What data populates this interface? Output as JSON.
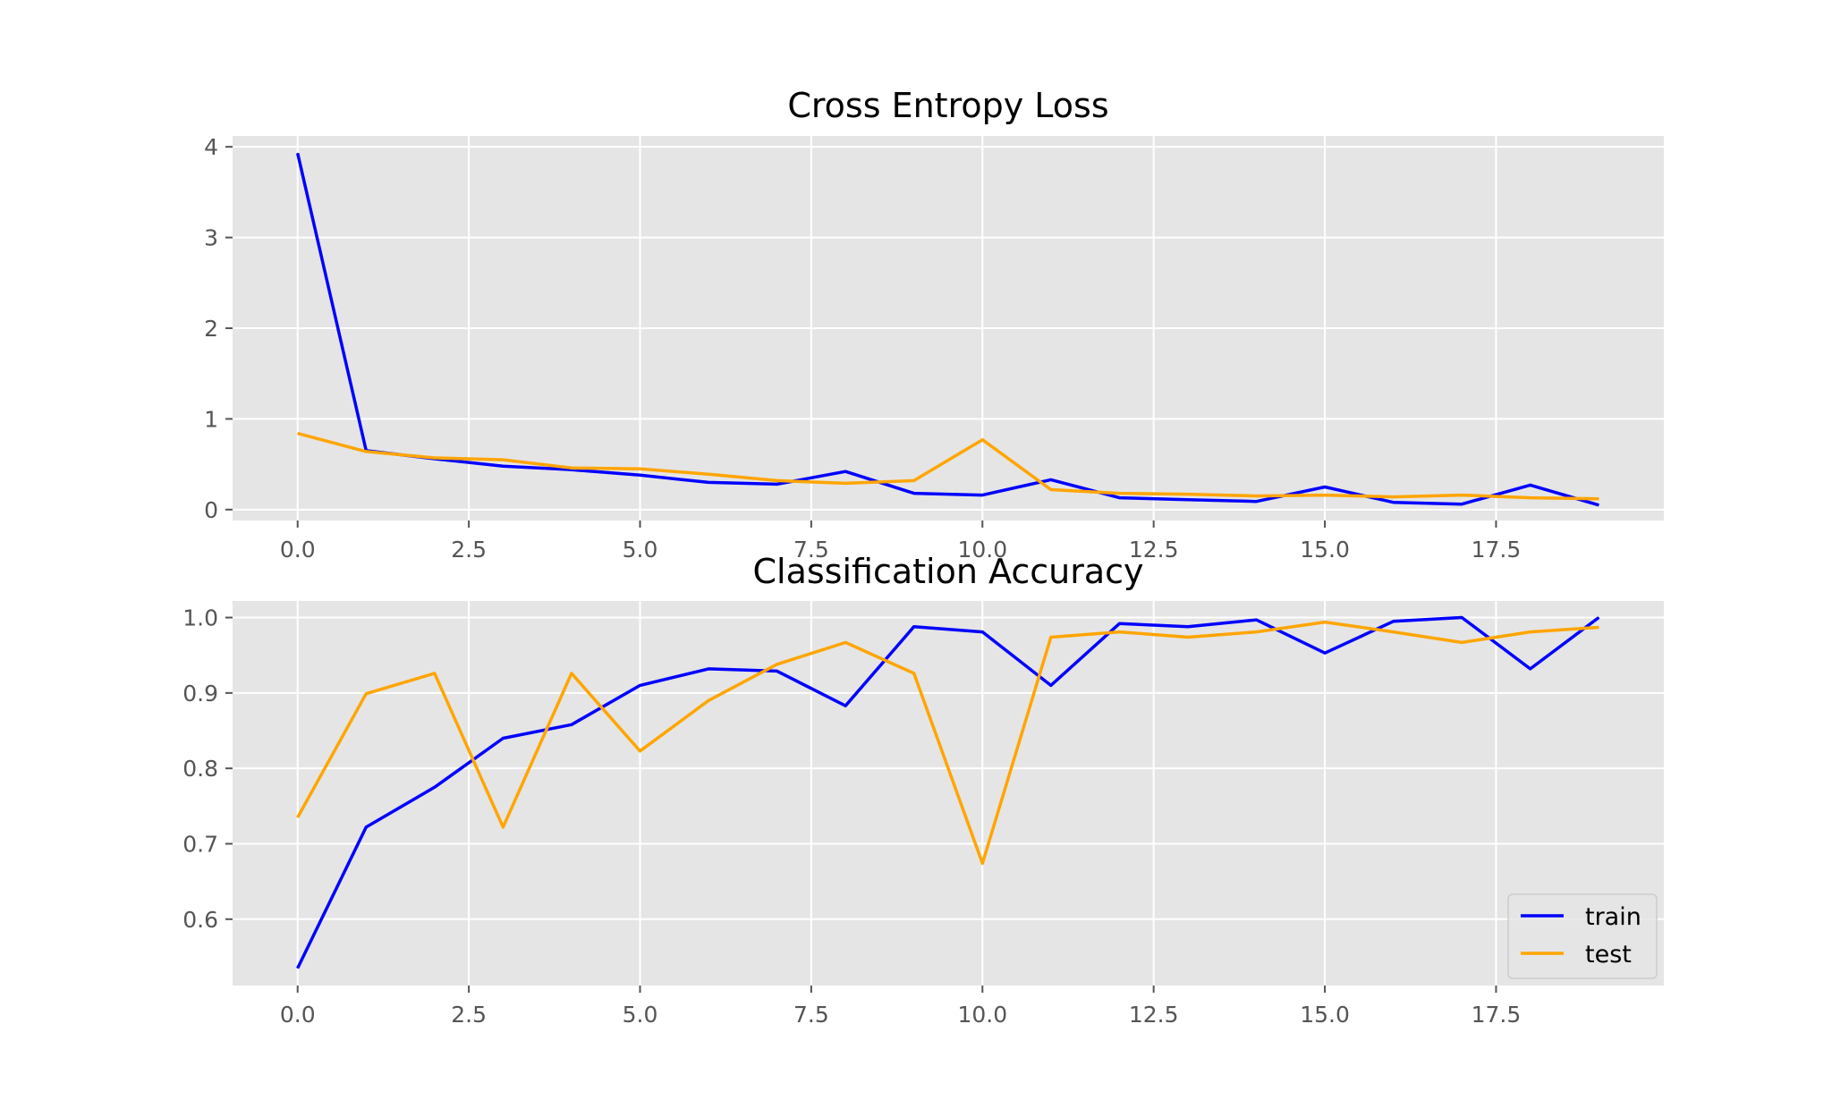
{
  "colors": {
    "background": "#ffffff",
    "axes_bg": "#e5e5e5",
    "grid": "#ffffff",
    "tick_text": "#555555",
    "title_text": "#000000",
    "legend_bg": "#e5e5e5",
    "legend_border": "#cccccc"
  },
  "chart_data": [
    {
      "type": "line",
      "title": "Cross Entropy Loss",
      "xlabel": "",
      "ylabel": "",
      "grid": true,
      "xlim": [
        -0.95,
        19.95
      ],
      "ylim": [
        -0.12,
        4.12
      ],
      "xticks": [
        0.0,
        2.5,
        5.0,
        7.5,
        10.0,
        12.5,
        15.0,
        17.5
      ],
      "xtick_labels": [
        "0.0",
        "2.5",
        "5.0",
        "7.5",
        "10.0",
        "12.5",
        "15.0",
        "17.5"
      ],
      "yticks": [
        0,
        1,
        2,
        3,
        4
      ],
      "ytick_labels": [
        "0",
        "1",
        "2",
        "3",
        "4"
      ],
      "x": [
        0,
        1,
        2,
        3,
        4,
        5,
        6,
        7,
        8,
        9,
        10,
        11,
        12,
        13,
        14,
        15,
        16,
        17,
        18,
        19
      ],
      "series": [
        {
          "name": "train",
          "color": "#0000ff",
          "values": [
            3.93,
            0.65,
            0.56,
            0.48,
            0.44,
            0.38,
            0.3,
            0.28,
            0.42,
            0.18,
            0.16,
            0.33,
            0.13,
            0.11,
            0.09,
            0.25,
            0.08,
            0.06,
            0.27,
            0.05
          ]
        },
        {
          "name": "test",
          "color": "#ffa500",
          "values": [
            0.84,
            0.64,
            0.57,
            0.55,
            0.46,
            0.45,
            0.39,
            0.32,
            0.29,
            0.32,
            0.77,
            0.22,
            0.18,
            0.17,
            0.15,
            0.16,
            0.14,
            0.16,
            0.13,
            0.12
          ]
        }
      ]
    },
    {
      "type": "line",
      "title": "Classification Accuracy",
      "xlabel": "",
      "ylabel": "",
      "grid": true,
      "legend": "lower right",
      "xlim": [
        -0.95,
        19.95
      ],
      "ylim": [
        0.512,
        1.022
      ],
      "xticks": [
        0.0,
        2.5,
        5.0,
        7.5,
        10.0,
        12.5,
        15.0,
        17.5
      ],
      "xtick_labels": [
        "0.0",
        "2.5",
        "5.0",
        "7.5",
        "10.0",
        "12.5",
        "15.0",
        "17.5"
      ],
      "yticks": [
        0.6,
        0.7,
        0.8,
        0.9,
        1.0
      ],
      "ytick_labels": [
        "0.6",
        "0.7",
        "0.8",
        "0.9",
        "1.0"
      ],
      "x": [
        0,
        1,
        2,
        3,
        4,
        5,
        6,
        7,
        8,
        9,
        10,
        11,
        12,
        13,
        14,
        15,
        16,
        17,
        18,
        19
      ],
      "series": [
        {
          "name": "train",
          "color": "#0000ff",
          "values": [
            0.535,
            0.722,
            0.775,
            0.84,
            0.858,
            0.91,
            0.932,
            0.929,
            0.883,
            0.988,
            0.981,
            0.91,
            0.992,
            0.988,
            0.997,
            0.953,
            0.995,
            1.0,
            0.932,
            1.0
          ]
        },
        {
          "name": "test",
          "color": "#ffa500",
          "values": [
            0.735,
            0.899,
            0.926,
            0.722,
            0.926,
            0.823,
            0.89,
            0.938,
            0.967,
            0.926,
            0.674,
            0.974,
            0.981,
            0.974,
            0.981,
            0.994,
            0.981,
            0.967,
            0.981,
            0.987
          ]
        }
      ]
    }
  ]
}
